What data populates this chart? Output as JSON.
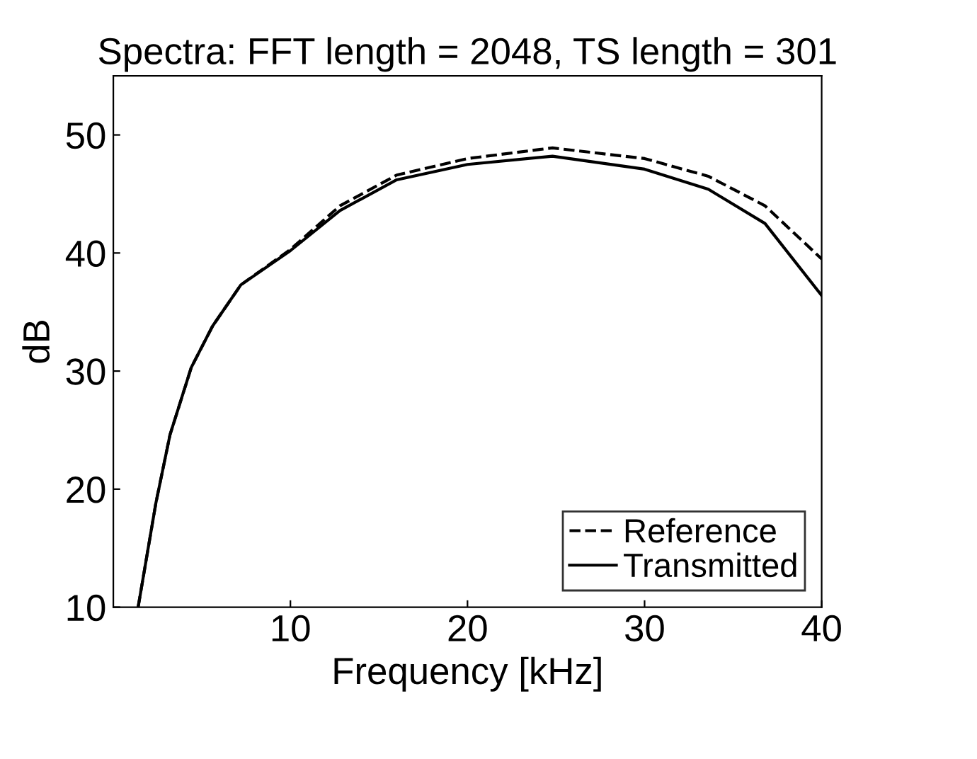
{
  "chart_data": {
    "type": "line",
    "title": "Spectra: FFT length = 2048, TS length = 301",
    "xlabel": "Frequency [kHz]",
    "ylabel": "dB",
    "xlim": [
      0,
      40
    ],
    "ylim": [
      10,
      55
    ],
    "xticks": [
      10,
      20,
      30,
      40
    ],
    "yticks": [
      10,
      20,
      30,
      40,
      50
    ],
    "grid": false,
    "legend": "bottom right",
    "series": [
      {
        "name": "Reference",
        "color": "#000000",
        "line_style": "dashed",
        "x": [
          1.4,
          2.4,
          3.2,
          4.4,
          5.6,
          7.2,
          10,
          12.8,
          16,
          20,
          24.8,
          30,
          33.6,
          36.8,
          40
        ],
        "values": [
          10,
          18.8,
          24.6,
          30.3,
          33.8,
          37.3,
          40.3,
          44,
          46.6,
          48,
          48.9,
          48,
          46.5,
          44,
          39.5
        ]
      },
      {
        "name": "Transmitted",
        "color": "#000000",
        "line_style": "solid",
        "x": [
          1.4,
          2.4,
          3.2,
          4.4,
          5.6,
          7.2,
          10,
          12.8,
          16,
          20,
          24.8,
          30,
          33.6,
          36.8,
          40
        ],
        "values": [
          10,
          18.8,
          24.6,
          30.3,
          33.8,
          37.3,
          40.2,
          43.6,
          46.2,
          47.5,
          48.2,
          47.1,
          45.4,
          42.5,
          36.4
        ]
      }
    ]
  }
}
